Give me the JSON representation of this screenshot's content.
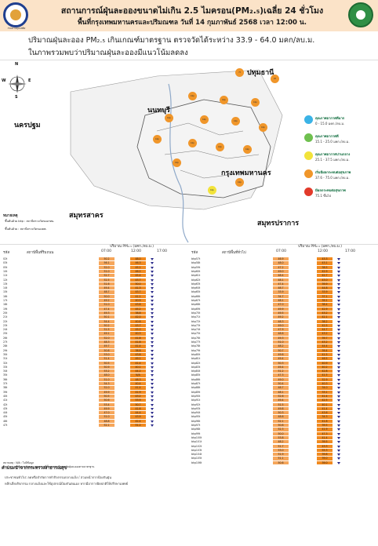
{
  "header": {
    "title_line1": "สถานการณ์ฝุ่นละอองขนาดไม่เกิน 2.5 ไมครอน(PM₂.₅)เฉลี่ย 24 ชั่วโมง",
    "title_line2": "พื้นที่กรุงเทพมหานครและปริมณฑล วันที่ 14 กุมภาพันธ์ 2568 เวลา 12:00 น.",
    "left_logo_caption": "กรมควบคุมมลพิษ"
  },
  "summary": {
    "line1": "ปริมาณฝุ่นละออง PM₂.₅ เกินเกณฑ์มาตรฐาน ตรวจวัดได้ระหว่าง 33.9 - 64.0 มคก/ลบ.ม.",
    "line2": "ในภาพรวมพบว่าปริมาณฝุ่นละอองมีแนวโน้มลดลง"
  },
  "map": {
    "labels": {
      "pathum": "ปทุมธานี",
      "nonthaburi": "นนทบุรี",
      "nakhon_pathom": "นครปฐม",
      "bangkok": "กรุงเทพมหานคร",
      "samut_sakhon": "สมุทรสาคร",
      "samut_prakan": "สมุทรปราการ"
    },
    "note_title": "หมายเหตุ",
    "note1": "ขึ้นต้นด้วย  bkp : สถานีตรวจวัดของกทม.",
    "note2": "ขึ้นต้นด้วย  :  สถานีตรวจวัดของคพ.",
    "compass": {
      "n": "N",
      "s": "S",
      "e": "E",
      "w": "W"
    },
    "legend": [
      {
        "title": "คุณภาพอากาศดีมาก",
        "range": "0 - 15.0 มคก./ลบ.ม.",
        "color": "#3bb3e6"
      },
      {
        "title": "คุณภาพอากาศดี",
        "range": "15.1 - 25.0 มคก./ลบ.ม.",
        "color": "#6fc04f"
      },
      {
        "title": "คุณภาพอากาศปานกลาง",
        "range": "25.1 - 37.5 มคก./ลบ.ม.",
        "color": "#f2e33a"
      },
      {
        "title": "เริ่มมีผลกระทบต่อสุขภาพ",
        "range": "37.6 - 75.0 มคก./ลบ.ม.",
        "color": "#f0962a"
      },
      {
        "title": "มีผลกระทบต่อสุขภาพ",
        "range": "75.1 ขึ้นไป",
        "color": "#e23a2a"
      }
    ],
    "markers": [
      {
        "id": "7t",
        "color": "#f0962a"
      },
      {
        "id": "20",
        "color": "#f0962a"
      },
      {
        "id": "bkp",
        "color": "#f0962a"
      },
      {
        "id": "bkp",
        "color": "#f0962a"
      },
      {
        "id": "bkp",
        "color": "#f0962a"
      },
      {
        "id": "bkp",
        "color": "#f0962a"
      },
      {
        "id": "bkp",
        "color": "#f0962a"
      },
      {
        "id": "bkp",
        "color": "#f0962a"
      },
      {
        "id": "bkp",
        "color": "#f0962a"
      },
      {
        "id": "bkp",
        "color": "#f0962a"
      },
      {
        "id": "bkp",
        "color": "#f0962a"
      },
      {
        "id": "bkp",
        "color": "#f0962a"
      },
      {
        "id": "bkp",
        "color": "#f0962a"
      },
      {
        "id": "bkp",
        "color": "#f0962a"
      },
      {
        "id": "bkp",
        "color": "#f2e33a"
      },
      {
        "id": "bkp",
        "color": "#f0962a"
      }
    ]
  },
  "tables": {
    "station_label": "รหัส",
    "station_name_label": "สถานีพื้นที่ริมถนน",
    "station_name_label_right": "สถานีพื้นที่ทั่วไป",
    "value_label": "ปริมาณ PM₂.₅ (มคก./ลบ.ม.)",
    "times": [
      "07:00",
      "12:00",
      "17:00"
    ],
    "left_rows": [
      {
        "code": "02t",
        "v1": "50.2",
        "v2": "48.0"
      },
      {
        "code": "03t",
        "v1": "56.1",
        "v2": "46.3"
      },
      {
        "code": "05t",
        "v1": "52.0",
        "v2": "45.1"
      },
      {
        "code": "10t",
        "v1": "51.0",
        "v2": "46.2"
      },
      {
        "code": "11t",
        "v1": "52.7",
        "v2": "45.4"
      },
      {
        "code": "12t",
        "v1": "52.5",
        "v2": "43.7"
      },
      {
        "code": "13t",
        "v1": "51.6",
        "v2": "50.0"
      },
      {
        "code": "14t",
        "v1": "49.4",
        "v2": "41.3"
      },
      {
        "code": "15t",
        "v1": "48.7",
        "v2": "43.7"
      },
      {
        "code": "16t",
        "v1": "50.0",
        "v2": "41.1"
      },
      {
        "code": "17t",
        "v1": "49.2",
        "v2": "40.9"
      },
      {
        "code": "18t",
        "v1": "51.0",
        "v2": "43.8"
      },
      {
        "code": "19t",
        "v1": "47.4",
        "v2": "45.2"
      },
      {
        "code": "20t",
        "v1": "49.3",
        "v2": "38.8"
      },
      {
        "code": "21t",
        "v1": "50.1",
        "v2": "42.0"
      },
      {
        "code": "22t",
        "v1": "54.4",
        "v2": "40.8"
      },
      {
        "code": "23t",
        "v1": "50.2",
        "v2": "43.7"
      },
      {
        "code": "24t",
        "v1": "51.5",
        "v2": "45.0"
      },
      {
        "code": "25t",
        "v1": "49.1",
        "v2": "40.3"
      },
      {
        "code": "26t",
        "v1": "52.0",
        "v2": "41.8"
      },
      {
        "code": "27t",
        "v1": "48.3",
        "v2": "41.8"
      },
      {
        "code": "28t",
        "v1": "49.7",
        "v2": "41.4"
      },
      {
        "code": "29t",
        "v1": "50.8",
        "v2": "38.8"
      },
      {
        "code": "30t",
        "v1": "53.0",
        "v2": "43.8"
      },
      {
        "code": "31t",
        "v1": "51.4",
        "v2": "49.1"
      },
      {
        "code": "32t",
        "v1": "50.5",
        "v2": "41.4"
      },
      {
        "code": "33t",
        "v1": "50.9",
        "v2": "40.1"
      },
      {
        "code": "34t",
        "v1": "53.2",
        "v2": "44.2"
      },
      {
        "code": "35t",
        "v1": "48.0",
        "v2": "N/A"
      },
      {
        "code": "36t",
        "v1": "51.0",
        "v2": "48.3"
      },
      {
        "code": "37t",
        "v1": "54.3",
        "v2": "40.4"
      },
      {
        "code": "38t",
        "v1": "52.0",
        "v2": "41.4"
      },
      {
        "code": "39t",
        "v1": "49.9",
        "v2": "41.9"
      },
      {
        "code": "40t",
        "v1": "50.5",
        "v2": "43.2"
      },
      {
        "code": "41t",
        "v1": "50.6",
        "v2": "53.9"
      },
      {
        "code": "42t",
        "v1": "53.4",
        "v2": "50.7"
      },
      {
        "code": "43t",
        "v1": "49.9",
        "v2": "41.6"
      },
      {
        "code": "44t",
        "v1": "47.0",
        "v2": "44.4"
      },
      {
        "code": "45t",
        "v1": "51.0",
        "v2": "43.9"
      },
      {
        "code": "46t",
        "v1": "48.8",
        "v2": "42.4"
      },
      {
        "code": "47t",
        "v1": "52.1",
        "v2": "51.2"
      }
    ],
    "right_rows": [
      {
        "code": "bkp57t",
        "v1": "46.9",
        "v2": "43.3"
      },
      {
        "code": "bkp58t",
        "v1": "48.0",
        "v2": "43.1"
      },
      {
        "code": "bkp59t",
        "v1": "47.2",
        "v2": "38.5"
      },
      {
        "code": "bkp60t",
        "v1": "49.0",
        "v2": "42.9"
      },
      {
        "code": "bkp61t",
        "v1": "48.4",
        "v2": "42.7"
      },
      {
        "code": "bkp62t",
        "v1": "48.1",
        "v2": "43.0"
      },
      {
        "code": "bkp63t",
        "v1": "47.4",
        "v2": "39.9"
      },
      {
        "code": "bkp64t",
        "v1": "48.7",
        "v2": "44.8"
      },
      {
        "code": "bkp65t",
        "v1": "33.9",
        "v2": "33.9"
      },
      {
        "code": "bkp66t",
        "v1": "34.7",
        "v2": "37.1"
      },
      {
        "code": "bkp67t",
        "v1": "48.1",
        "v2": "39.1"
      },
      {
        "code": "bkp68t",
        "v1": "47.0",
        "v2": "38.4"
      },
      {
        "code": "bkp69t",
        "v1": "49.9",
        "v2": "42.9"
      },
      {
        "code": "bkp70t",
        "v1": "49.5",
        "v2": "43.2"
      },
      {
        "code": "bkp71t",
        "v1": "49.2",
        "v2": "42.1"
      },
      {
        "code": "bkp72t",
        "v1": "48.3",
        "v2": "38.2"
      },
      {
        "code": "bkp73t",
        "v1": "49.0",
        "v2": "42.5"
      },
      {
        "code": "bkp74t",
        "v1": "47.9",
        "v2": "44.7"
      },
      {
        "code": "bkp75t",
        "v1": "48.6",
        "v2": "43.2"
      },
      {
        "code": "bkp76t",
        "v1": "49.3",
        "v2": "39.7"
      },
      {
        "code": "bkp77t",
        "v1": "51.0",
        "v2": "43.2"
      },
      {
        "code": "bkp78t",
        "v1": "48.2",
        "v2": "44.4"
      },
      {
        "code": "bkp79t",
        "v1": "50.7",
        "v2": "39.4"
      },
      {
        "code": "bkp80t",
        "v1": "49.6",
        "v2": "41.5"
      },
      {
        "code": "bkp81t",
        "v1": "49.4",
        "v2": "46.5"
      },
      {
        "code": "bkp82t",
        "v1": "50.3",
        "v2": "40.9"
      },
      {
        "code": "bkp83t",
        "v1": "49.4",
        "v2": "40.2"
      },
      {
        "code": "bkp84t",
        "v1": "51.2",
        "v2": "42.8"
      },
      {
        "code": "bkp85t",
        "v1": "47.3",
        "v2": "41.5"
      },
      {
        "code": "bkp86t",
        "v1": "49.0",
        "v2": "52.9"
      },
      {
        "code": "bkp87t",
        "v1": "50.4",
        "v2": "40.3"
      },
      {
        "code": "bkp88t",
        "v1": "48.7",
        "v2": "34.0"
      },
      {
        "code": "bkp89t",
        "v1": "48.1",
        "v2": "33.1"
      },
      {
        "code": "bkp90t",
        "v1": "52.6",
        "v2": "41.4"
      },
      {
        "code": "bkp91t",
        "v1": "49.4",
        "v2": "42.5"
      },
      {
        "code": "bkp92t",
        "v1": "51.5",
        "v2": "40.1"
      },
      {
        "code": "bkp93t",
        "v1": "49.8",
        "v2": "41.4"
      },
      {
        "code": "bkp94t",
        "v1": "50.3",
        "v2": "43.6"
      },
      {
        "code": "bkp95t",
        "v1": "48.6",
        "v2": "34.3"
      },
      {
        "code": "bkp96t",
        "v1": "52.1",
        "v2": "41.8"
      },
      {
        "code": "bkp97t",
        "v1": "50.8",
        "v2": "39.5"
      },
      {
        "code": "bkp98t",
        "v1": "52.3",
        "v2": "41.9"
      },
      {
        "code": "bkp99t",
        "v1": "50.0",
        "v2": "47.3"
      },
      {
        "code": "bkp100t",
        "v1": "53.8",
        "v2": "41.4"
      },
      {
        "code": "bkp101t",
        "v1": "48.2",
        "v2": "39.5"
      },
      {
        "code": "bkp102t",
        "v1": "51.7",
        "v2": "43.3"
      },
      {
        "code": "bkp103t",
        "v1": "53.0",
        "v2": "55.3"
      },
      {
        "code": "bkp104t",
        "v1": "51.9",
        "v2": "39.8"
      },
      {
        "code": "bkp105t",
        "v1": "51.1",
        "v2": "39.0"
      },
      {
        "code": "bkp106t",
        "v1": "50.6",
        "v2": "39.0"
      }
    ],
    "left_footnote1": "หมายเหตุ : N/A : ไม่มีข้อมูล",
    "left_footnote2": "1. บริเวณสถานีตรวจวัดคุณภาพอากาศที่ตั้งของสถานีตรวจวัดฝุ่นละอองตามมาตรฐาน"
  },
  "footer": {
    "title": "คำแนะนำจากกระทรวงสาธารณสุข",
    "line1": "ประชาชนทั่วไป: ลดหรือจำกัดการทำกิจกรรมกลางแจ้ง / สวมหน้ากากป้องกันฝุ่น",
    "line2": "หลีกเลี่ยงกิจกรรม กลางแจ้งและใช้อุปกรณ์ป้องกันตนเอง หากมีอาการผิดปกติให้ปรึกษาแพทย์"
  }
}
